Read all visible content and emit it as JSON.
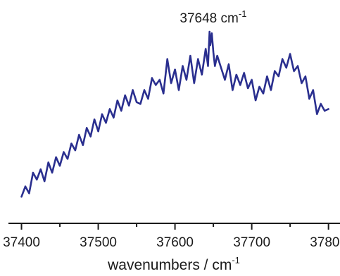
{
  "chart_data": {
    "type": "line",
    "title": "",
    "xlabel": "wavenumbers / cm",
    "xlabel_sup": "-1",
    "ylabel": "",
    "xlim": [
      37383,
      37815
    ],
    "ylim": [
      0,
      1.0
    ],
    "x_ticks": [
      37400,
      37500,
      37600,
      37700,
      37800
    ],
    "x_tick_labels": [
      "37400",
      "37500",
      "37600",
      "37700",
      "37800"
    ],
    "y_axis_visible": false,
    "grid": false,
    "legend": "none",
    "line_color": "#2a2f8f",
    "annotation": {
      "text": "37648 cm",
      "sup": "-1",
      "x": 37648
    },
    "series": [
      {
        "x": [
          37400,
          37405,
          37410,
          37415,
          37420,
          37425,
          37430,
          37435,
          37440,
          37445,
          37450,
          37455,
          37460,
          37465,
          37470,
          37475,
          37480,
          37485,
          37490,
          37495,
          37500,
          37505,
          37510,
          37515,
          37520,
          37525,
          37530,
          37535,
          37540,
          37545,
          37550,
          37555,
          37560,
          37565,
          37570,
          37575,
          37580,
          37585,
          37590,
          37595,
          37600,
          37605,
          37610,
          37615,
          37620,
          37625,
          37630,
          37635,
          37640,
          37643,
          37645,
          37646,
          37648,
          37650,
          37652,
          37655,
          37660,
          37665,
          37670,
          37675,
          37680,
          37685,
          37690,
          37695,
          37700,
          37705,
          37710,
          37715,
          37720,
          37725,
          37730,
          37735,
          37740,
          37745,
          37750,
          37755,
          37760,
          37765,
          37770,
          37775,
          37780,
          37785,
          37790,
          37795,
          37800
        ],
        "y": [
          0.04,
          0.1,
          0.06,
          0.18,
          0.14,
          0.2,
          0.13,
          0.24,
          0.18,
          0.27,
          0.22,
          0.3,
          0.26,
          0.35,
          0.31,
          0.4,
          0.34,
          0.44,
          0.39,
          0.49,
          0.42,
          0.52,
          0.47,
          0.55,
          0.5,
          0.6,
          0.54,
          0.63,
          0.57,
          0.66,
          0.59,
          0.58,
          0.66,
          0.61,
          0.73,
          0.69,
          0.72,
          0.64,
          0.84,
          0.7,
          0.78,
          0.66,
          0.8,
          0.72,
          0.86,
          0.7,
          0.84,
          0.75,
          0.9,
          0.8,
          1.0,
          0.92,
          0.99,
          0.88,
          0.8,
          0.86,
          0.79,
          0.72,
          0.81,
          0.66,
          0.75,
          0.69,
          0.76,
          0.67,
          0.72,
          0.6,
          0.68,
          0.64,
          0.74,
          0.66,
          0.77,
          0.74,
          0.84,
          0.79,
          0.87,
          0.77,
          0.8,
          0.7,
          0.74,
          0.61,
          0.66,
          0.52,
          0.58,
          0.54,
          0.55
        ]
      }
    ]
  }
}
